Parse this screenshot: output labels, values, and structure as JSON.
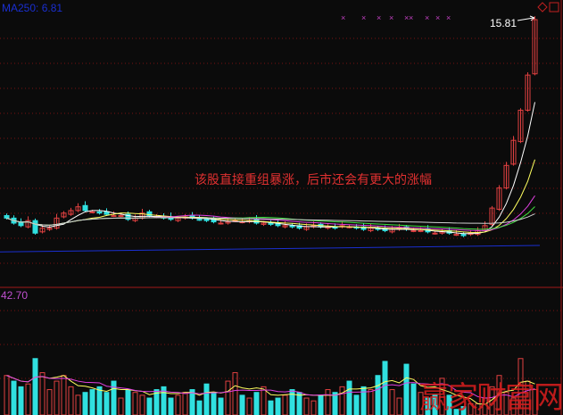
{
  "header": {
    "ma_label": "MA250: 6.81",
    "max_price_label": "15.81"
  },
  "volume_panel": {
    "max_label": "42.70"
  },
  "annotation": "该股直接重组暴涨，后市还会有更大的涨幅",
  "watermark": "赢家财富网",
  "colors": {
    "up": "#e04040",
    "down": "#30e0e0",
    "grid": "#7a1010",
    "ma5": "#ffffff",
    "ma10": "#ffff60",
    "ma20": "#e040e0",
    "ma30": "#40e040",
    "ma60": "#d0d0d0",
    "ma250": "#1a2fd0"
  },
  "chart_data": {
    "type": "candlestick",
    "price_range": [
      6.0,
      16.3
    ],
    "closes": [
      7.9,
      7.7,
      7.6,
      7.8,
      7.3,
      7.5,
      7.5,
      7.9,
      8.1,
      8.2,
      8.35,
      8.2,
      8.15,
      8.1,
      8.05,
      8.0,
      8.0,
      7.85,
      7.9,
      8.1,
      8.0,
      7.95,
      7.9,
      7.85,
      7.9,
      7.95,
      7.9,
      7.85,
      7.8,
      7.75,
      7.7,
      7.75,
      7.8,
      7.75,
      7.8,
      7.7,
      7.7,
      7.65,
      7.6,
      7.6,
      7.55,
      7.5,
      7.55,
      7.6,
      7.55,
      7.55,
      7.5,
      7.6,
      7.55,
      7.5,
      7.45,
      7.5,
      7.45,
      7.4,
      7.45,
      7.5,
      7.45,
      7.4,
      7.4,
      7.35,
      7.3,
      7.35,
      7.3,
      7.25,
      7.2,
      7.3,
      7.4,
      7.6,
      8.3,
      9.1,
      10.0,
      11.0,
      12.2,
      13.6,
      15.81
    ],
    "volumes": [
      14,
      12,
      10,
      11,
      20,
      15,
      9,
      12,
      14,
      10,
      7,
      8,
      9,
      10,
      8,
      12,
      6,
      9,
      8,
      7,
      6,
      9,
      10,
      6,
      7,
      8,
      9,
      5,
      11,
      8,
      6,
      12,
      15,
      7,
      6,
      8,
      10,
      5,
      6,
      7,
      9,
      8,
      6,
      5,
      7,
      9,
      8,
      10,
      12,
      7,
      10,
      9,
      14,
      19,
      9,
      6,
      18,
      11,
      8,
      6,
      7,
      13,
      7,
      2,
      3,
      4,
      4,
      6,
      10,
      14,
      8,
      6,
      20,
      12,
      9
    ],
    "ma250_range": [
      6.55,
      6.81
    ],
    "max_price": 15.81,
    "volume_max": 42.7
  }
}
